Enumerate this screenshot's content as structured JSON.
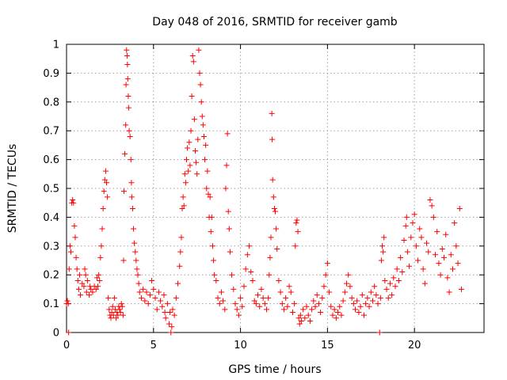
{
  "chart_data": {
    "type": "scatter",
    "title": "Day 048 of 2016, SRMTID for receiver gamb",
    "xlabel": "GPS time / hours",
    "ylabel": "SRMTID / TECUs",
    "xlim": [
      0,
      24
    ],
    "ylim": [
      0,
      1
    ],
    "xticks": [
      0,
      5,
      10,
      15,
      20
    ],
    "xtick_labels": [
      "0",
      "5",
      "10",
      "15",
      "20"
    ],
    "yticks": [
      0,
      0.1,
      0.2,
      0.3,
      0.4,
      0.5,
      0.6,
      0.7,
      0.8,
      0.9,
      1
    ],
    "ytick_labels": [
      "0",
      "0.1",
      "0.2",
      "0.3",
      "0.4",
      "0.5",
      "0.6",
      "0.7",
      "0.8",
      "0.9",
      "1"
    ],
    "grid": true,
    "marker": "plus",
    "color": "#ff0000",
    "series": [
      {
        "name": "SRMTID",
        "points": [
          [
            0.0,
            0.1
          ],
          [
            0.05,
            0.11
          ],
          [
            0.1,
            0.1
          ],
          [
            0.12,
            0.0
          ],
          [
            0.15,
            0.22
          ],
          [
            0.2,
            0.3
          ],
          [
            0.25,
            0.28
          ],
          [
            0.3,
            0.45
          ],
          [
            0.35,
            0.46
          ],
          [
            0.4,
            0.45
          ],
          [
            0.45,
            0.37
          ],
          [
            0.5,
            0.33
          ],
          [
            0.55,
            0.26
          ],
          [
            0.6,
            0.22
          ],
          [
            0.65,
            0.18
          ],
          [
            0.7,
            0.15
          ],
          [
            0.75,
            0.2
          ],
          [
            0.8,
            0.13
          ],
          [
            0.9,
            0.17
          ],
          [
            1.0,
            0.16
          ],
          [
            1.05,
            0.22
          ],
          [
            1.1,
            0.2
          ],
          [
            1.15,
            0.14
          ],
          [
            1.2,
            0.18
          ],
          [
            1.3,
            0.13
          ],
          [
            1.35,
            0.16
          ],
          [
            1.4,
            0.15
          ],
          [
            1.5,
            0.14
          ],
          [
            1.6,
            0.16
          ],
          [
            1.7,
            0.15
          ],
          [
            1.75,
            0.19
          ],
          [
            1.8,
            0.16
          ],
          [
            1.85,
            0.2
          ],
          [
            1.9,
            0.18
          ],
          [
            1.95,
            0.26
          ],
          [
            2.0,
            0.3
          ],
          [
            2.05,
            0.36
          ],
          [
            2.1,
            0.43
          ],
          [
            2.15,
            0.49
          ],
          [
            2.2,
            0.53
          ],
          [
            2.25,
            0.56
          ],
          [
            2.3,
            0.52
          ],
          [
            2.35,
            0.47
          ],
          [
            2.4,
            0.12
          ],
          [
            2.45,
            0.08
          ],
          [
            2.5,
            0.06
          ],
          [
            2.55,
            0.05
          ],
          [
            2.6,
            0.07
          ],
          [
            2.65,
            0.09
          ],
          [
            2.7,
            0.06
          ],
          [
            2.75,
            0.12
          ],
          [
            2.8,
            0.08
          ],
          [
            2.85,
            0.05
          ],
          [
            2.9,
            0.07
          ],
          [
            2.95,
            0.06
          ],
          [
            3.0,
            0.09
          ],
          [
            3.05,
            0.08
          ],
          [
            3.1,
            0.07
          ],
          [
            3.15,
            0.1
          ],
          [
            3.2,
            0.09
          ],
          [
            3.25,
            0.06
          ],
          [
            3.28,
            0.25
          ],
          [
            3.3,
            0.49
          ],
          [
            3.35,
            0.62
          ],
          [
            3.4,
            0.72
          ],
          [
            3.42,
            0.86
          ],
          [
            3.45,
            0.98
          ],
          [
            3.48,
            0.96
          ],
          [
            3.5,
            0.93
          ],
          [
            3.52,
            0.88
          ],
          [
            3.55,
            0.82
          ],
          [
            3.57,
            0.78
          ],
          [
            3.6,
            0.7
          ],
          [
            3.65,
            0.68
          ],
          [
            3.7,
            0.6
          ],
          [
            3.73,
            0.52
          ],
          [
            3.75,
            0.47
          ],
          [
            3.8,
            0.43
          ],
          [
            3.85,
            0.36
          ],
          [
            3.9,
            0.31
          ],
          [
            3.95,
            0.28
          ],
          [
            4.0,
            0.25
          ],
          [
            4.05,
            0.22
          ],
          [
            4.1,
            0.2
          ],
          [
            4.15,
            0.17
          ],
          [
            4.2,
            0.14
          ],
          [
            4.3,
            0.12
          ],
          [
            4.4,
            0.15
          ],
          [
            4.5,
            0.11
          ],
          [
            4.6,
            0.14
          ],
          [
            4.7,
            0.1
          ],
          [
            4.8,
            0.13
          ],
          [
            4.9,
            0.18
          ],
          [
            5.0,
            0.15
          ],
          [
            5.1,
            0.12
          ],
          [
            5.2,
            0.08
          ],
          [
            5.3,
            0.14
          ],
          [
            5.4,
            0.11
          ],
          [
            5.5,
            0.09
          ],
          [
            5.6,
            0.13
          ],
          [
            5.65,
            0.07
          ],
          [
            5.7,
            0.05
          ],
          [
            5.8,
            0.1
          ],
          [
            5.9,
            0.03
          ],
          [
            5.95,
            0.07
          ],
          [
            6.0,
            0.0
          ],
          [
            6.05,
            0.02
          ],
          [
            6.1,
            0.08
          ],
          [
            6.2,
            0.06
          ],
          [
            6.3,
            0.12
          ],
          [
            6.4,
            0.17
          ],
          [
            6.5,
            0.23
          ],
          [
            6.55,
            0.28
          ],
          [
            6.6,
            0.33
          ],
          [
            6.65,
            0.43
          ],
          [
            6.7,
            0.47
          ],
          [
            6.75,
            0.44
          ],
          [
            6.8,
            0.55
          ],
          [
            6.85,
            0.52
          ],
          [
            6.9,
            0.6
          ],
          [
            6.95,
            0.64
          ],
          [
            7.0,
            0.56
          ],
          [
            7.05,
            0.66
          ],
          [
            7.1,
            0.58
          ],
          [
            7.15,
            0.7
          ],
          [
            7.2,
            0.82
          ],
          [
            7.25,
            0.96
          ],
          [
            7.3,
            0.94
          ],
          [
            7.35,
            0.74
          ],
          [
            7.4,
            0.63
          ],
          [
            7.45,
            0.59
          ],
          [
            7.5,
            0.55
          ],
          [
            7.55,
            0.67
          ],
          [
            7.6,
            0.98
          ],
          [
            7.65,
            0.9
          ],
          [
            7.7,
            0.86
          ],
          [
            7.75,
            0.8
          ],
          [
            7.8,
            0.75
          ],
          [
            7.85,
            0.72
          ],
          [
            7.9,
            0.68
          ],
          [
            7.95,
            0.6
          ],
          [
            8.0,
            0.65
          ],
          [
            8.05,
            0.5
          ],
          [
            8.1,
            0.56
          ],
          [
            8.15,
            0.48
          ],
          [
            8.2,
            0.4
          ],
          [
            8.25,
            0.47
          ],
          [
            8.3,
            0.35
          ],
          [
            8.35,
            0.4
          ],
          [
            8.4,
            0.3
          ],
          [
            8.45,
            0.25
          ],
          [
            8.5,
            0.2
          ],
          [
            8.6,
            0.18
          ],
          [
            8.7,
            0.12
          ],
          [
            8.8,
            0.1
          ],
          [
            8.9,
            0.14
          ],
          [
            9.0,
            0.11
          ],
          [
            9.1,
            0.08
          ],
          [
            9.15,
            0.5
          ],
          [
            9.2,
            0.58
          ],
          [
            9.25,
            0.69
          ],
          [
            9.3,
            0.42
          ],
          [
            9.35,
            0.36
          ],
          [
            9.4,
            0.28
          ],
          [
            9.5,
            0.2
          ],
          [
            9.6,
            0.15
          ],
          [
            9.7,
            0.1
          ],
          [
            9.8,
            0.08
          ],
          [
            9.9,
            0.06
          ],
          [
            10.0,
            0.12
          ],
          [
            10.1,
            0.09
          ],
          [
            10.2,
            0.16
          ],
          [
            10.3,
            0.22
          ],
          [
            10.4,
            0.27
          ],
          [
            10.5,
            0.3
          ],
          [
            10.6,
            0.21
          ],
          [
            10.7,
            0.18
          ],
          [
            10.8,
            0.11
          ],
          [
            10.9,
            0.1
          ],
          [
            11.0,
            0.13
          ],
          [
            11.1,
            0.09
          ],
          [
            11.2,
            0.15
          ],
          [
            11.3,
            0.12
          ],
          [
            11.4,
            0.1
          ],
          [
            11.5,
            0.08
          ],
          [
            11.6,
            0.12
          ],
          [
            11.65,
            0.2
          ],
          [
            11.7,
            0.26
          ],
          [
            11.75,
            0.33
          ],
          [
            11.8,
            0.76
          ],
          [
            11.82,
            0.67
          ],
          [
            11.85,
            0.53
          ],
          [
            11.9,
            0.47
          ],
          [
            11.95,
            0.43
          ],
          [
            12.0,
            0.42
          ],
          [
            12.05,
            0.36
          ],
          [
            12.1,
            0.29
          ],
          [
            12.2,
            0.18
          ],
          [
            12.3,
            0.14
          ],
          [
            12.4,
            0.1
          ],
          [
            12.5,
            0.08
          ],
          [
            12.6,
            0.12
          ],
          [
            12.7,
            0.09
          ],
          [
            12.8,
            0.16
          ],
          [
            12.9,
            0.14
          ],
          [
            13.0,
            0.07
          ],
          [
            13.1,
            0.1
          ],
          [
            13.15,
            0.3
          ],
          [
            13.2,
            0.38
          ],
          [
            13.25,
            0.39
          ],
          [
            13.3,
            0.35
          ],
          [
            13.35,
            0.05
          ],
          [
            13.4,
            0.03
          ],
          [
            13.45,
            0.06
          ],
          [
            13.5,
            0.04
          ],
          [
            13.6,
            0.08
          ],
          [
            13.7,
            0.05
          ],
          [
            13.8,
            0.09
          ],
          [
            13.9,
            0.06
          ],
          [
            14.0,
            0.04
          ],
          [
            14.1,
            0.08
          ],
          [
            14.2,
            0.11
          ],
          [
            14.3,
            0.09
          ],
          [
            14.4,
            0.13
          ],
          [
            14.5,
            0.1
          ],
          [
            14.6,
            0.07
          ],
          [
            14.7,
            0.12
          ],
          [
            14.8,
            0.16
          ],
          [
            14.9,
            0.2
          ],
          [
            15.0,
            0.24
          ],
          [
            15.1,
            0.14
          ],
          [
            15.2,
            0.09
          ],
          [
            15.3,
            0.06
          ],
          [
            15.4,
            0.08
          ],
          [
            15.5,
            0.05
          ],
          [
            15.6,
            0.07
          ],
          [
            15.7,
            0.09
          ],
          [
            15.8,
            0.06
          ],
          [
            15.9,
            0.11
          ],
          [
            16.0,
            0.14
          ],
          [
            16.1,
            0.17
          ],
          [
            16.2,
            0.2
          ],
          [
            16.3,
            0.16
          ],
          [
            16.4,
            0.12
          ],
          [
            16.5,
            0.1
          ],
          [
            16.6,
            0.08
          ],
          [
            16.7,
            0.11
          ],
          [
            16.8,
            0.07
          ],
          [
            16.9,
            0.09
          ],
          [
            17.0,
            0.13
          ],
          [
            17.1,
            0.06
          ],
          [
            17.2,
            0.1
          ],
          [
            17.3,
            0.12
          ],
          [
            17.4,
            0.09
          ],
          [
            17.5,
            0.14
          ],
          [
            17.6,
            0.11
          ],
          [
            17.7,
            0.16
          ],
          [
            17.8,
            0.13
          ],
          [
            17.9,
            0.1
          ],
          [
            18.0,
            0.0
          ],
          [
            18.05,
            0.12
          ],
          [
            18.1,
            0.25
          ],
          [
            18.15,
            0.3
          ],
          [
            18.2,
            0.28
          ],
          [
            18.25,
            0.33
          ],
          [
            18.3,
            0.18
          ],
          [
            18.4,
            0.15
          ],
          [
            18.5,
            0.12
          ],
          [
            18.6,
            0.17
          ],
          [
            18.7,
            0.13
          ],
          [
            18.8,
            0.19
          ],
          [
            18.9,
            0.16
          ],
          [
            19.0,
            0.22
          ],
          [
            19.1,
            0.18
          ],
          [
            19.2,
            0.26
          ],
          [
            19.3,
            0.21
          ],
          [
            19.4,
            0.32
          ],
          [
            19.5,
            0.37
          ],
          [
            19.55,
            0.4
          ],
          [
            19.6,
            0.28
          ],
          [
            19.7,
            0.23
          ],
          [
            19.8,
            0.33
          ],
          [
            19.9,
            0.38
          ],
          [
            20.0,
            0.41
          ],
          [
            20.1,
            0.3
          ],
          [
            20.2,
            0.25
          ],
          [
            20.3,
            0.36
          ],
          [
            20.4,
            0.33
          ],
          [
            20.5,
            0.22
          ],
          [
            20.6,
            0.17
          ],
          [
            20.7,
            0.31
          ],
          [
            20.8,
            0.28
          ],
          [
            20.9,
            0.46
          ],
          [
            21.0,
            0.44
          ],
          [
            21.1,
            0.4
          ],
          [
            21.2,
            0.27
          ],
          [
            21.3,
            0.35
          ],
          [
            21.4,
            0.24
          ],
          [
            21.5,
            0.2
          ],
          [
            21.6,
            0.29
          ],
          [
            21.7,
            0.26
          ],
          [
            21.8,
            0.34
          ],
          [
            21.9,
            0.19
          ],
          [
            22.0,
            0.14
          ],
          [
            22.1,
            0.27
          ],
          [
            22.2,
            0.22
          ],
          [
            22.3,
            0.38
          ],
          [
            22.4,
            0.3
          ],
          [
            22.5,
            0.24
          ],
          [
            22.6,
            0.43
          ],
          [
            22.7,
            0.15
          ]
        ]
      }
    ]
  }
}
